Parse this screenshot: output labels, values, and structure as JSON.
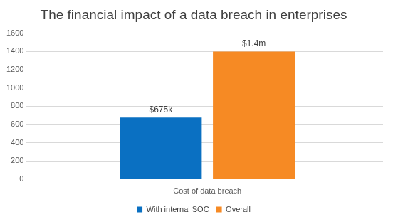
{
  "chart_data": {
    "type": "bar",
    "title": "The financial impact of a data breach in enterprises",
    "categories": [
      "Cost of data breach"
    ],
    "series": [
      {
        "name": "With internal SOC",
        "color": "#0a70c2",
        "values": [
          675
        ],
        "value_labels": [
          "$675k"
        ]
      },
      {
        "name": "Overall",
        "color": "#f68a24",
        "values": [
          1400
        ],
        "value_labels": [
          "$1.4m"
        ]
      }
    ],
    "ylim": [
      0,
      1600
    ],
    "yticks": [
      0,
      200,
      400,
      600,
      800,
      1000,
      1200,
      1400,
      1600
    ],
    "grid": true,
    "legend": "bottom",
    "data_labels": true
  }
}
